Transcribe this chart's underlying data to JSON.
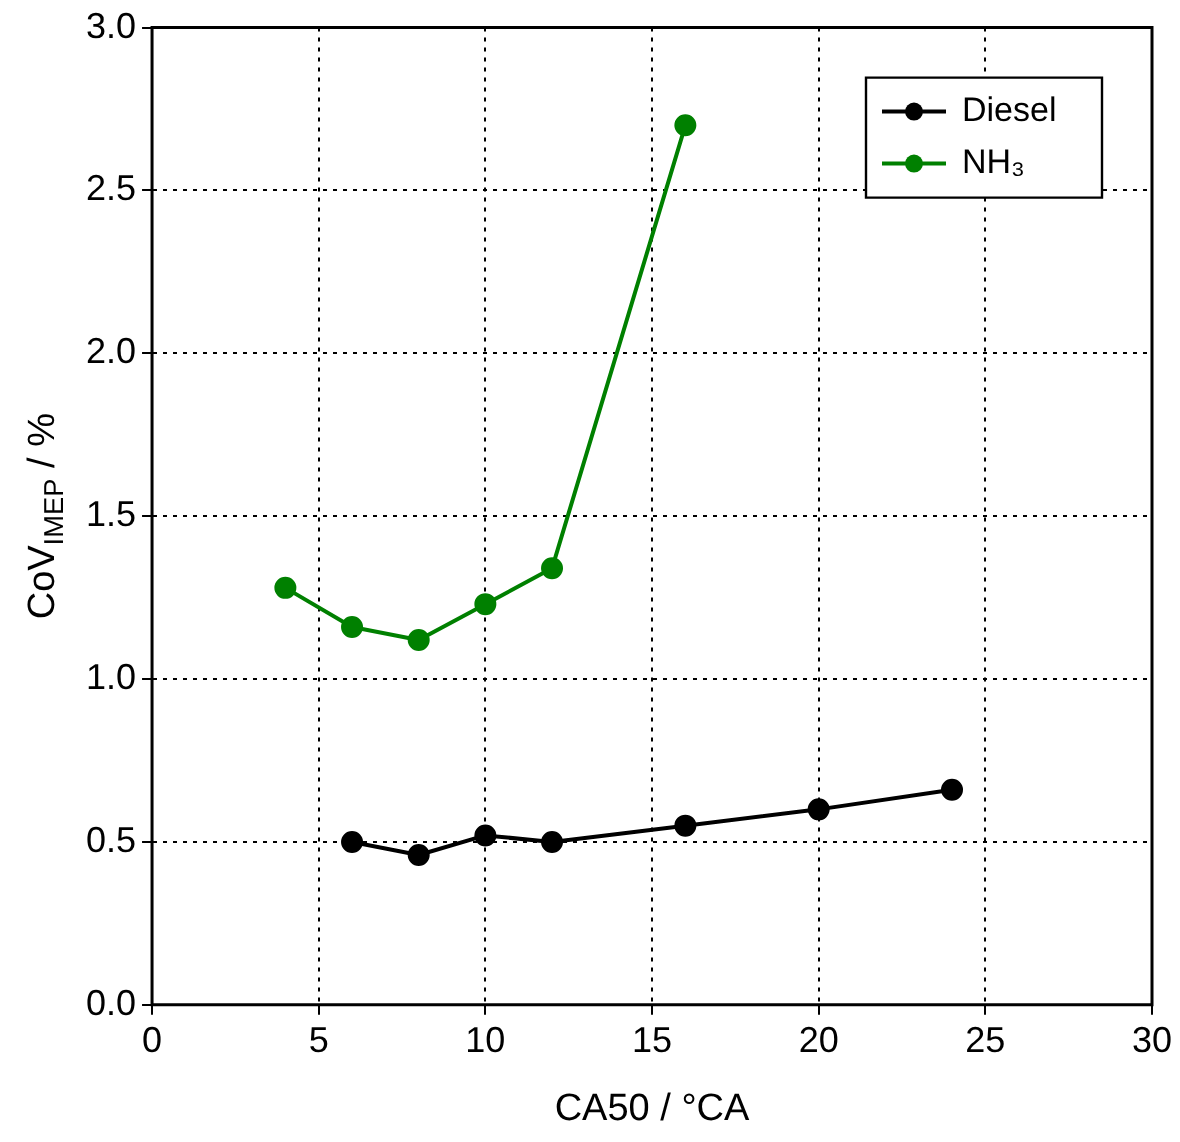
{
  "chart_data": {
    "type": "line",
    "xlabel": "CA50 / °CA",
    "ylabel": "CoV$_{IMEP}$ / %",
    "series": [
      {
        "name": "Diesel",
        "color": "#000000",
        "x": [
          6,
          8,
          10,
          12,
          16,
          20,
          24
        ],
        "values": [
          0.5,
          0.46,
          0.52,
          0.5,
          0.55,
          0.6,
          0.66
        ]
      },
      {
        "name": "NH₃",
        "color": "#008000",
        "x": [
          4,
          6,
          8,
          10,
          12,
          16
        ],
        "values": [
          1.28,
          1.16,
          1.12,
          1.23,
          1.34,
          2.7
        ]
      }
    ],
    "xlim": [
      0,
      30
    ],
    "xticks": [
      0,
      5,
      10,
      15,
      20,
      25,
      30
    ],
    "ylim": [
      0,
      3
    ],
    "yticks": [
      {
        "value": 0,
        "label": "0.0"
      },
      {
        "value": 0.5,
        "label": "0.5"
      },
      {
        "value": 1,
        "label": "1.0"
      },
      {
        "value": 1.5,
        "label": "1.5"
      },
      {
        "value": 2,
        "label": "2.0"
      },
      {
        "value": 2.5,
        "label": "2.5"
      },
      {
        "value": 3,
        "label": "3.0"
      }
    ],
    "grid": true,
    "legend": "top right",
    "marker": "circle",
    "line_style": "solid"
  }
}
